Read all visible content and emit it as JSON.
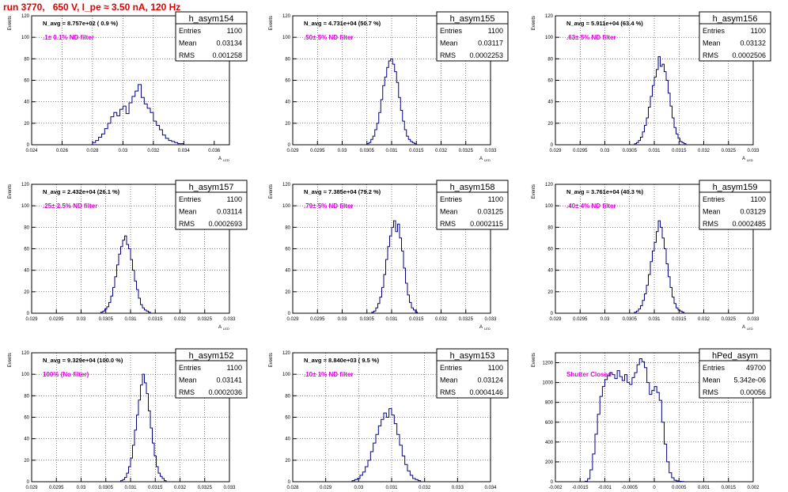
{
  "page": {
    "title": "run 3770,   650 V, I_pe ≈ 3.50 nA, 120 Hz"
  },
  "chart_data": [
    {
      "type": "histogram",
      "name": "h_asym154",
      "annotation": "N_avg = 8.757e+02 ( 0.9 %)",
      "filter_label": ".1± 0.1% ND filter",
      "stats": [
        [
          "Entries",
          "1100"
        ],
        [
          "Mean",
          "0.03134"
        ],
        [
          "RMS",
          "0.001258"
        ]
      ],
      "xlim": [
        0.024,
        0.037
      ],
      "ylim": [
        0,
        120
      ],
      "xticks": [
        "0.024",
        "0.026",
        "0.028",
        "0.03",
        "0.032",
        "0.034",
        "0.036"
      ],
      "xtick_values": [
        0.024,
        0.026,
        0.028,
        0.03,
        0.032,
        0.034,
        0.036
      ],
      "yticks": [
        0,
        20,
        40,
        60,
        80,
        100,
        120
      ],
      "xlabel": "A",
      "xlabel_sub": "LED",
      "ylabel": "Events",
      "bins_x0": 0.028,
      "bin_width": 0.0002,
      "values": [
        2,
        4,
        7,
        10,
        15,
        20,
        26,
        30,
        27,
        33,
        36,
        29,
        39,
        45,
        50,
        56,
        44,
        38,
        34,
        30,
        22,
        18,
        14,
        9,
        6,
        4,
        3,
        2,
        1,
        1
      ]
    },
    {
      "type": "histogram",
      "name": "h_asym155",
      "annotation": "N_avg = 4.731e+04 (50.7 %)",
      "filter_label": ".50± 5% ND filter",
      "stats": [
        [
          "Entries",
          "1100"
        ],
        [
          "Mean",
          "0.03117"
        ],
        [
          "RMS",
          "0.0002253"
        ]
      ],
      "xlim": [
        0.029,
        0.033
      ],
      "ylim": [
        0,
        120
      ],
      "xticks": [
        "0.029",
        "0.0295",
        "0.03",
        "0.0305",
        "0.031",
        "0.0315",
        "0.032",
        "0.0325",
        "0.033"
      ],
      "xtick_values": [
        0.029,
        0.0295,
        0.03,
        0.0305,
        0.031,
        0.0315,
        0.032,
        0.0325,
        0.033
      ],
      "yticks": [
        0,
        20,
        40,
        60,
        80,
        100,
        120
      ],
      "xlabel": "A",
      "xlabel_sub": "LED",
      "ylabel": "Events",
      "bins_x0": 0.0305,
      "bin_width": 4e-05,
      "values": [
        1,
        2,
        5,
        8,
        14,
        20,
        30,
        42,
        55,
        63,
        72,
        78,
        80,
        75,
        68,
        58,
        44,
        32,
        22,
        14,
        8,
        5,
        3,
        2,
        1
      ]
    },
    {
      "type": "histogram",
      "name": "h_asym156",
      "annotation": "N_avg = 5.911e+04 (63.4 %)",
      "filter_label": ".63± 5% ND filter",
      "stats": [
        [
          "Entries",
          "1100"
        ],
        [
          "Mean",
          "0.03132"
        ],
        [
          "RMS",
          "0.0002506"
        ]
      ],
      "xlim": [
        0.029,
        0.033
      ],
      "ylim": [
        0,
        120
      ],
      "xticks": [
        "0.029",
        "0.0295",
        "0.03",
        "0.0305",
        "0.031",
        "0.0315",
        "0.032",
        "0.0325",
        "0.033"
      ],
      "xtick_values": [
        0.029,
        0.0295,
        0.03,
        0.0305,
        0.031,
        0.0315,
        0.032,
        0.0325,
        0.033
      ],
      "yticks": [
        0,
        20,
        40,
        60,
        80,
        100,
        120
      ],
      "xlabel": "A",
      "xlabel_sub": "LED",
      "ylabel": "Events",
      "bins_x0": 0.0306,
      "bin_width": 4e-05,
      "values": [
        1,
        2,
        4,
        7,
        12,
        18,
        25,
        35,
        45,
        55,
        63,
        70,
        82,
        73,
        75,
        68,
        60,
        48,
        36,
        25,
        16,
        10,
        6,
        3,
        2,
        1
      ]
    },
    {
      "type": "histogram",
      "name": "h_asym157",
      "annotation": "N_avg = 2.432e+04 (26.1 %)",
      "filter_label": ".25± 2.5% ND filter",
      "stats": [
        [
          "Entries",
          "1100"
        ],
        [
          "Mean",
          "0.03114"
        ],
        [
          "RMS",
          "0.0002693"
        ]
      ],
      "xlim": [
        0.029,
        0.033
      ],
      "ylim": [
        0,
        120
      ],
      "xticks": [
        "0.029",
        "0.0295",
        "0.03",
        "0.0305",
        "0.031",
        "0.0315",
        "0.032",
        "0.0325",
        "0.033"
      ],
      "xtick_values": [
        0.029,
        0.0295,
        0.03,
        0.0305,
        0.031,
        0.0315,
        0.032,
        0.0325,
        0.033
      ],
      "yticks": [
        0,
        20,
        40,
        60,
        80,
        100,
        120
      ],
      "xlabel": "A",
      "xlabel_sub": "LED",
      "ylabel": "Events",
      "bins_x0": 0.0304,
      "bin_width": 4e-05,
      "values": [
        1,
        2,
        4,
        6,
        10,
        16,
        24,
        34,
        45,
        55,
        62,
        68,
        72,
        64,
        60,
        50,
        40,
        30,
        22,
        14,
        8,
        5,
        3,
        2,
        1
      ]
    },
    {
      "type": "histogram",
      "name": "h_asym158",
      "annotation": "N_avg = 7.385e+04 (79.2 %)",
      "filter_label": ".79± 5% ND filter",
      "stats": [
        [
          "Entries",
          "1100"
        ],
        [
          "Mean",
          "0.03125"
        ],
        [
          "RMS",
          "0.0002115"
        ]
      ],
      "xlim": [
        0.029,
        0.033
      ],
      "ylim": [
        0,
        120
      ],
      "xticks": [
        "0.029",
        "0.0295",
        "0.03",
        "0.0305",
        "0.031",
        "0.0315",
        "0.032",
        "0.0325",
        "0.033"
      ],
      "xtick_values": [
        0.029,
        0.0295,
        0.03,
        0.0305,
        0.031,
        0.0315,
        0.032,
        0.0325,
        0.033
      ],
      "yticks": [
        0,
        20,
        40,
        60,
        80,
        100,
        120
      ],
      "xlabel": "A",
      "xlabel_sub": "LED",
      "ylabel": "Events",
      "bins_x0": 0.0306,
      "bin_width": 4e-05,
      "values": [
        1,
        2,
        5,
        9,
        15,
        24,
        36,
        50,
        62,
        72,
        80,
        86,
        76,
        83,
        70,
        58,
        42,
        28,
        17,
        10,
        5,
        3,
        1
      ]
    },
    {
      "type": "histogram",
      "name": "h_asym159",
      "annotation": "N_avg = 3.761e+04 (40.3 %)",
      "filter_label": ".40± 4% ND filter",
      "stats": [
        [
          "Entries",
          "1100"
        ],
        [
          "Mean",
          "0.03129"
        ],
        [
          "RMS",
          "0.0002485"
        ]
      ],
      "xlim": [
        0.029,
        0.033
      ],
      "ylim": [
        0,
        120
      ],
      "xticks": [
        "0.029",
        "0.0295",
        "0.03",
        "0.0305",
        "0.031",
        "0.0315",
        "0.032",
        "0.0325",
        "0.033"
      ],
      "xtick_values": [
        0.029,
        0.0295,
        0.03,
        0.0305,
        0.031,
        0.0315,
        0.032,
        0.0325,
        0.033
      ],
      "yticks": [
        0,
        20,
        40,
        60,
        80,
        100,
        120
      ],
      "xlabel": "A",
      "xlabel_sub": "LED",
      "ylabel": "Events",
      "bins_x0": 0.0306,
      "bin_width": 4e-05,
      "values": [
        1,
        2,
        4,
        7,
        12,
        18,
        26,
        36,
        48,
        58,
        66,
        76,
        86,
        80,
        70,
        60,
        46,
        34,
        24,
        15,
        9,
        5,
        3,
        2,
        1
      ]
    },
    {
      "type": "histogram",
      "name": "h_asym152",
      "annotation": "N_avg = 9.329e+04 (100.0 %)",
      "filter_label": "100% (No filter)",
      "stats": [
        [
          "Entries",
          "1100"
        ],
        [
          "Mean",
          "0.03141"
        ],
        [
          "RMS",
          "0.0002036"
        ]
      ],
      "xlim": [
        0.029,
        0.033
      ],
      "ylim": [
        0,
        120
      ],
      "xticks": [
        "0.029",
        "0.0295",
        "0.03",
        "0.0305",
        "0.031",
        "0.0315",
        "0.032",
        "0.0325",
        "0.033"
      ],
      "xtick_values": [
        0.029,
        0.0295,
        0.03,
        0.0305,
        0.031,
        0.0315,
        0.032,
        0.0325,
        0.033
      ],
      "yticks": [
        0,
        20,
        40,
        60,
        80,
        100,
        120
      ],
      "xlabel": "A",
      "xlabel_sub": "LED",
      "ylabel": "Events",
      "bins_x0": 0.0308,
      "bin_width": 4e-05,
      "values": [
        1,
        2,
        4,
        8,
        14,
        22,
        34,
        48,
        62,
        76,
        90,
        100,
        92,
        82,
        66,
        50,
        36,
        24,
        14,
        8,
        5,
        3,
        1
      ]
    },
    {
      "type": "histogram",
      "name": "h_asym153",
      "annotation": "N_avg = 8.840e+03 ( 9.5 %)",
      "filter_label": ".10± 1% ND filter",
      "stats": [
        [
          "Entries",
          "1100"
        ],
        [
          "Mean",
          "0.03124"
        ],
        [
          "RMS",
          "0.0004146"
        ]
      ],
      "xlim": [
        0.028,
        0.034
      ],
      "ylim": [
        0,
        120
      ],
      "xticks": [
        "0.028",
        "0.029",
        "0.03",
        "0.031",
        "0.032",
        "0.033",
        "0.034"
      ],
      "xtick_values": [
        0.028,
        0.029,
        0.03,
        0.031,
        0.032,
        0.033,
        0.034
      ],
      "yticks": [
        0,
        20,
        40,
        60,
        80,
        100,
        120
      ],
      "xlabel": "A",
      "xlabel_sub": "LED",
      "ylabel": "Events",
      "bins_x0": 0.0298,
      "bin_width": 8e-05,
      "values": [
        1,
        2,
        3,
        6,
        9,
        14,
        20,
        28,
        36,
        44,
        52,
        58,
        64,
        60,
        68,
        62,
        54,
        44,
        34,
        24,
        16,
        10,
        6,
        3,
        2,
        1
      ]
    },
    {
      "type": "histogram",
      "name": "hPed_asym",
      "annotation": "",
      "filter_label": "Shutter Closed",
      "stats": [
        [
          "Entries",
          "49700"
        ],
        [
          "Mean",
          "5.342e-06"
        ],
        [
          "RMS",
          "0.00056"
        ]
      ],
      "xlim": [
        -0.002,
        0.002
      ],
      "ylim": [
        0,
        1300
      ],
      "xticks": [
        "-0.002",
        "-0.0015",
        "-0.001",
        "-0.0005",
        "0",
        "0.0005",
        "0.001",
        "0.0015",
        "0.002"
      ],
      "xtick_values": [
        -0.002,
        -0.0015,
        -0.001,
        -0.0005,
        0,
        0.0005,
        0.001,
        0.0015,
        0.002
      ],
      "yticks": [
        0,
        200,
        400,
        600,
        800,
        1000,
        1200
      ],
      "xlabel": "A",
      "xlabel_sub": "LED",
      "ylabel": "Events",
      "bins_x0": -0.0014,
      "bin_width": 5e-05,
      "values": [
        5,
        30,
        120,
        280,
        480,
        680,
        860,
        960,
        1030,
        1070,
        1100,
        1080,
        1040,
        1120,
        1060,
        1020,
        1080,
        1000,
        980,
        1050,
        1100,
        1180,
        1240,
        1210,
        1150,
        1000,
        880,
        920,
        960,
        900,
        820,
        600,
        380,
        200,
        90,
        40,
        15,
        8,
        4,
        2
      ]
    }
  ]
}
